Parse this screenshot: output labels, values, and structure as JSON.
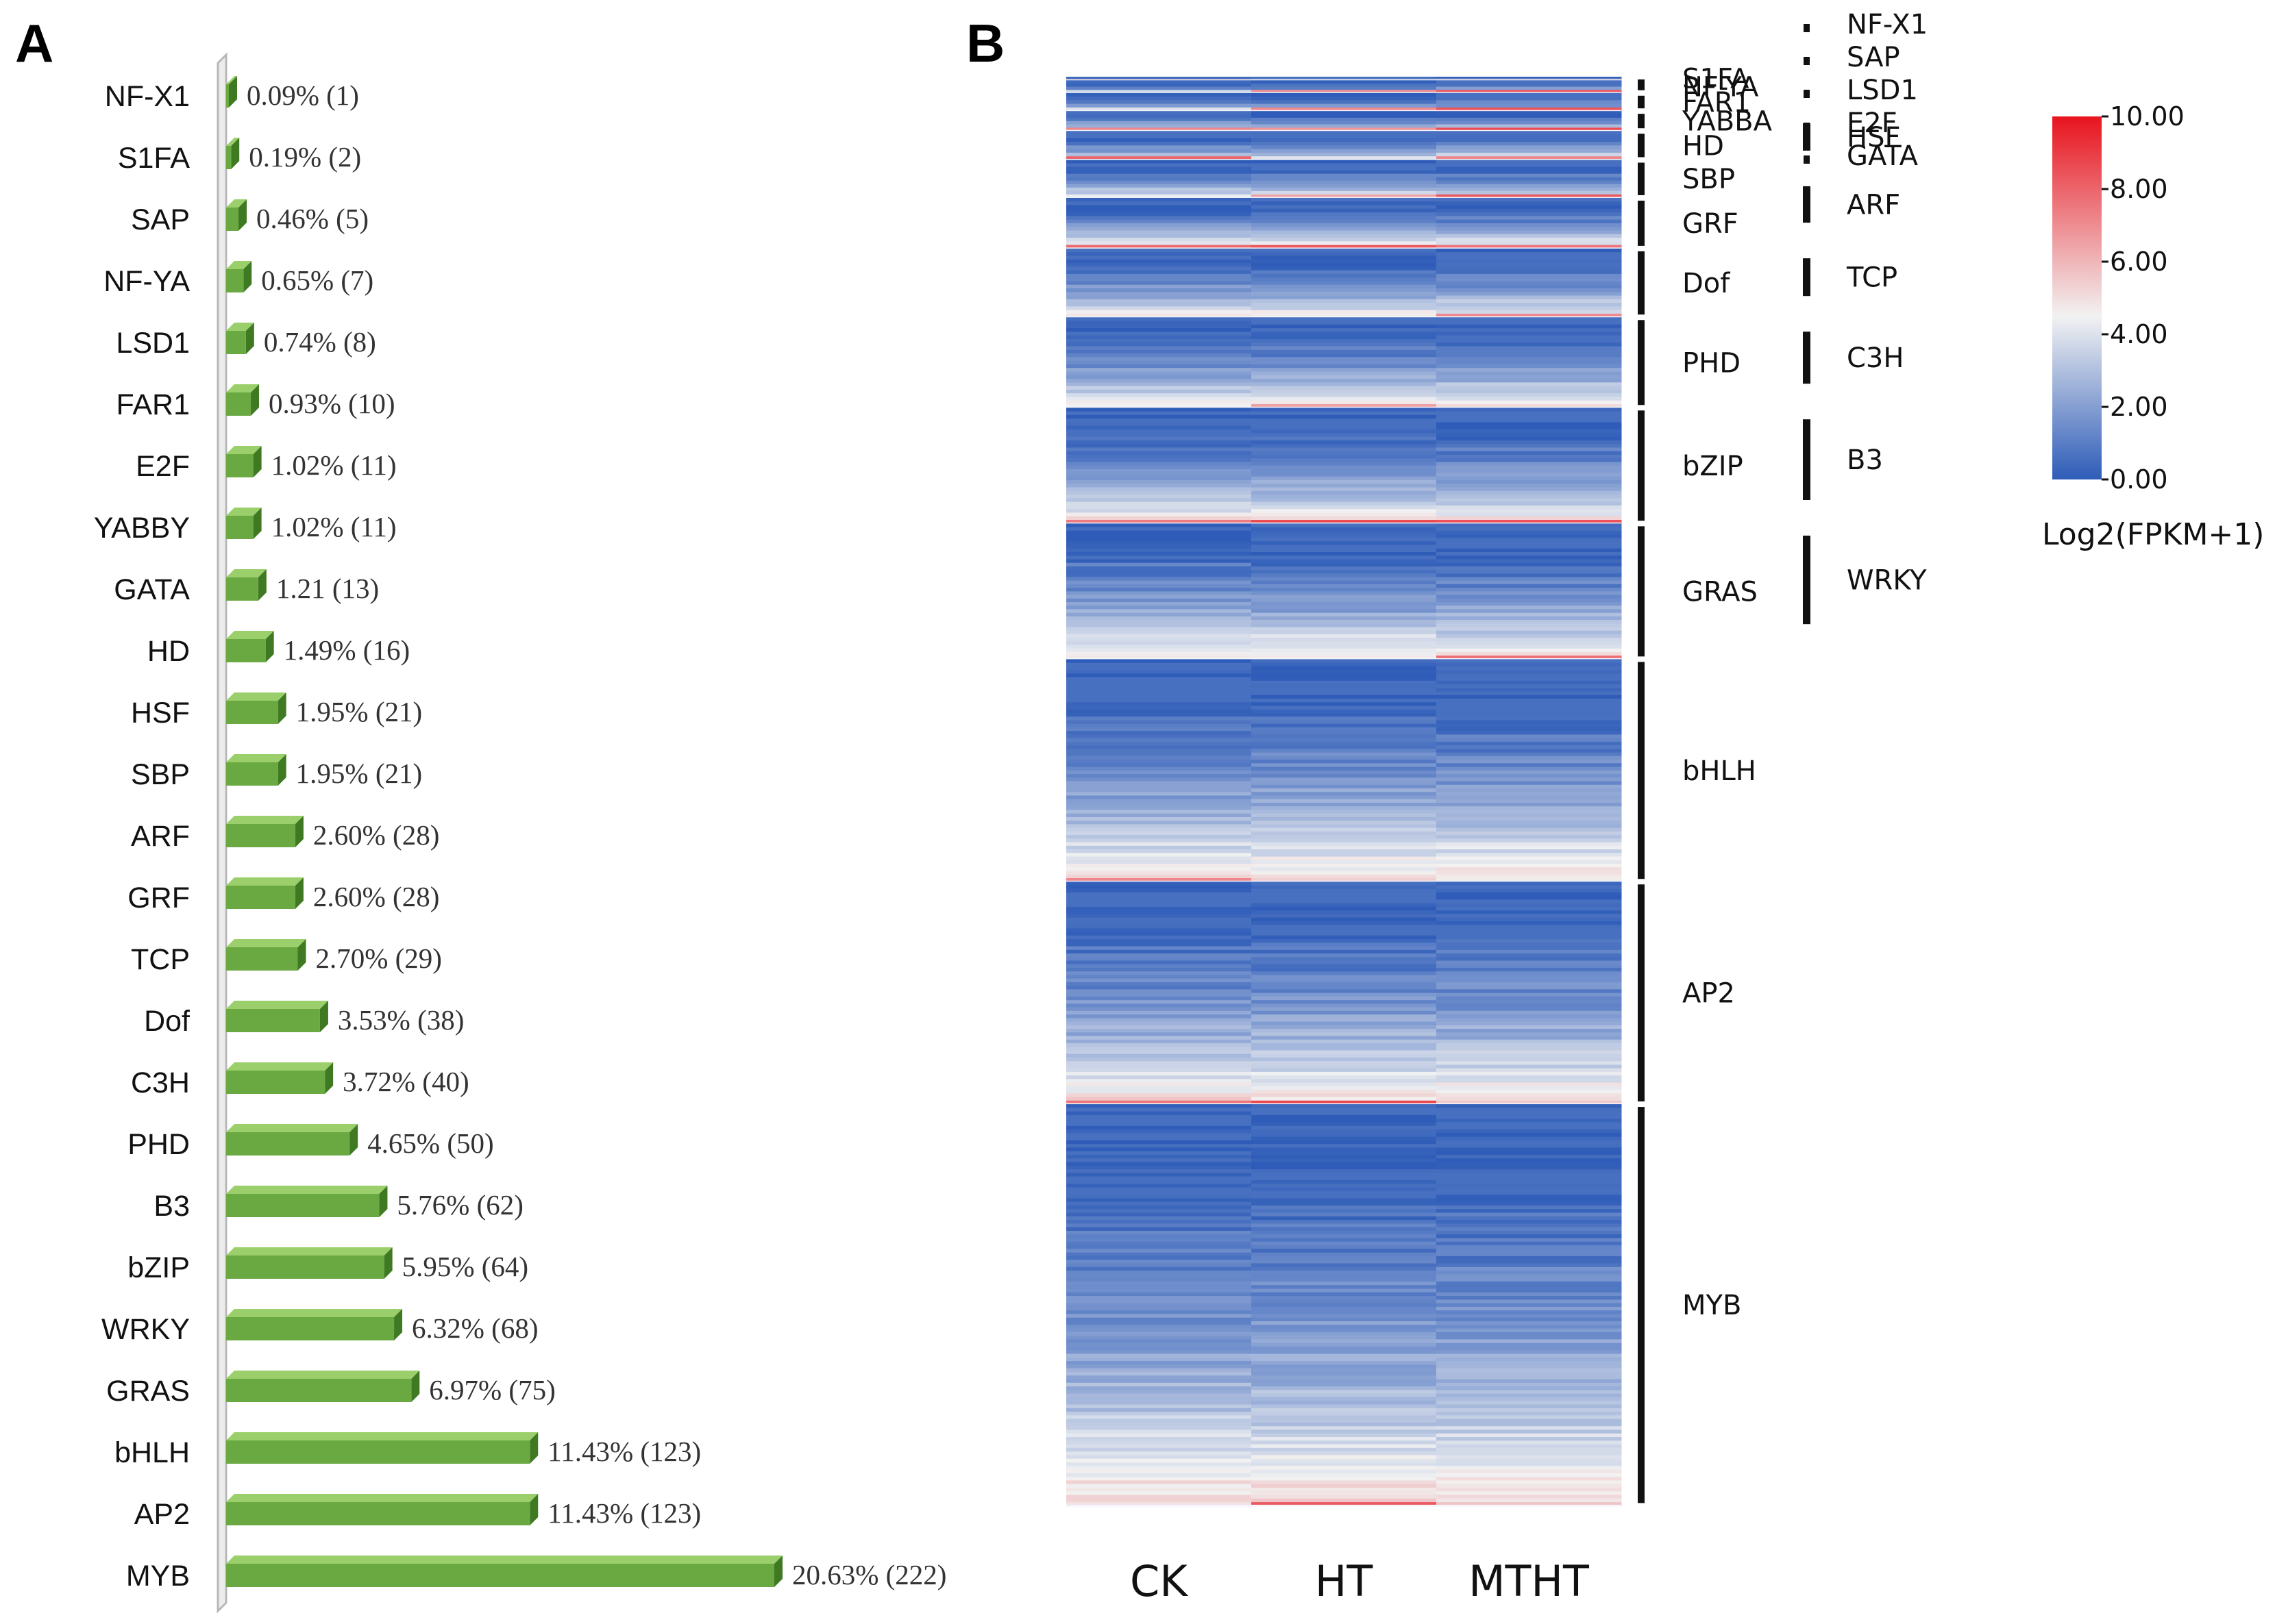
{
  "panel_a_letter": "A",
  "panel_b_letter": "B",
  "chart_data": [
    {
      "type": "bar",
      "orientation": "horizontal",
      "title": "",
      "xlabel": "",
      "ylabel": "",
      "categories": [
        "NF-X1",
        "S1FA",
        "SAP",
        "NF-YA",
        "LSD1",
        "FAR1",
        "E2F",
        "YABBY",
        "GATA",
        "HD",
        "HSF",
        "SBP",
        "ARF",
        "GRF",
        "TCP",
        "Dof",
        "C3H",
        "PHD",
        "B3",
        "bZIP",
        "WRKY",
        "GRAS",
        "bHLH",
        "AP2",
        "MYB"
      ],
      "values": [
        1,
        2,
        5,
        7,
        8,
        10,
        11,
        11,
        13,
        16,
        21,
        21,
        28,
        28,
        29,
        38,
        40,
        50,
        62,
        64,
        68,
        75,
        123,
        123,
        222
      ],
      "data_labels": [
        "0.09% (1)",
        "0.19% (2)",
        "0.46% (5)",
        "0.65% (7)",
        "0.74% (8)",
        "0.93% (10)",
        "1.02% (11)",
        "1.02% (11)",
        "1.21 (13)",
        "1.49% (16)",
        "1.95% (21)",
        "1.95% (21)",
        "2.60% (28)",
        "2.60% (28)",
        "2.70% (29)",
        "3.53% (38)",
        "3.72% (40)",
        "4.65% (50)",
        "5.76% (62)",
        "5.95% (64)",
        "6.32% (68)",
        "6.97% (75)",
        "11.43%  (123)",
        "11.43% (123)",
        "20.63% (222)"
      ],
      "bar_color": "#6aa842",
      "xlim": [
        0,
        222
      ]
    },
    {
      "type": "heatmap",
      "title": "",
      "columns": [
        "CK",
        "HT",
        "MTHT"
      ],
      "value_range": [
        0,
        10
      ],
      "colorbar_ticks": [
        "0.00",
        "2.00",
        "4.00",
        "6.00",
        "8.00",
        "10.00"
      ],
      "colorbar_title": "Log2(FPKM+1)",
      "colors": {
        "low": "#2e5cb8",
        "mid": "#f2f2f2",
        "high": "#e8141e"
      },
      "row_groups_column1": [
        {
          "name": "S1FA",
          "count": 2
        },
        {
          "name": "NF-YA",
          "count": 7
        },
        {
          "name": "FAR1",
          "count": 10
        },
        {
          "name": "YABBA",
          "count": 11
        },
        {
          "name": "HD",
          "count": 16
        },
        {
          "name": "SBP",
          "count": 21
        },
        {
          "name": "GRF",
          "count": 28
        },
        {
          "name": "Dof",
          "count": 38
        },
        {
          "name": "PHD",
          "count": 50
        },
        {
          "name": "bZIP",
          "count": 64
        },
        {
          "name": "GRAS",
          "count": 75
        },
        {
          "name": "bHLH",
          "count": 123
        },
        {
          "name": "AP2",
          "count": 123
        },
        {
          "name": "MYB",
          "count": 222
        }
      ],
      "row_groups_column2": [
        {
          "name": "NF-X1",
          "count": 1
        },
        {
          "name": "SAP",
          "count": 5
        },
        {
          "name": "LSD1",
          "count": 8
        },
        {
          "name": "E2F",
          "count": 11
        },
        {
          "name": "GATA",
          "count": 13
        },
        {
          "name": "HSF",
          "count": 21
        },
        {
          "name": "ARF",
          "count": 28
        },
        {
          "name": "TCP",
          "count": 29
        },
        {
          "name": "C3H",
          "count": 40
        },
        {
          "name": "B3",
          "count": 62
        },
        {
          "name": "WRKY",
          "count": 68
        }
      ]
    }
  ]
}
